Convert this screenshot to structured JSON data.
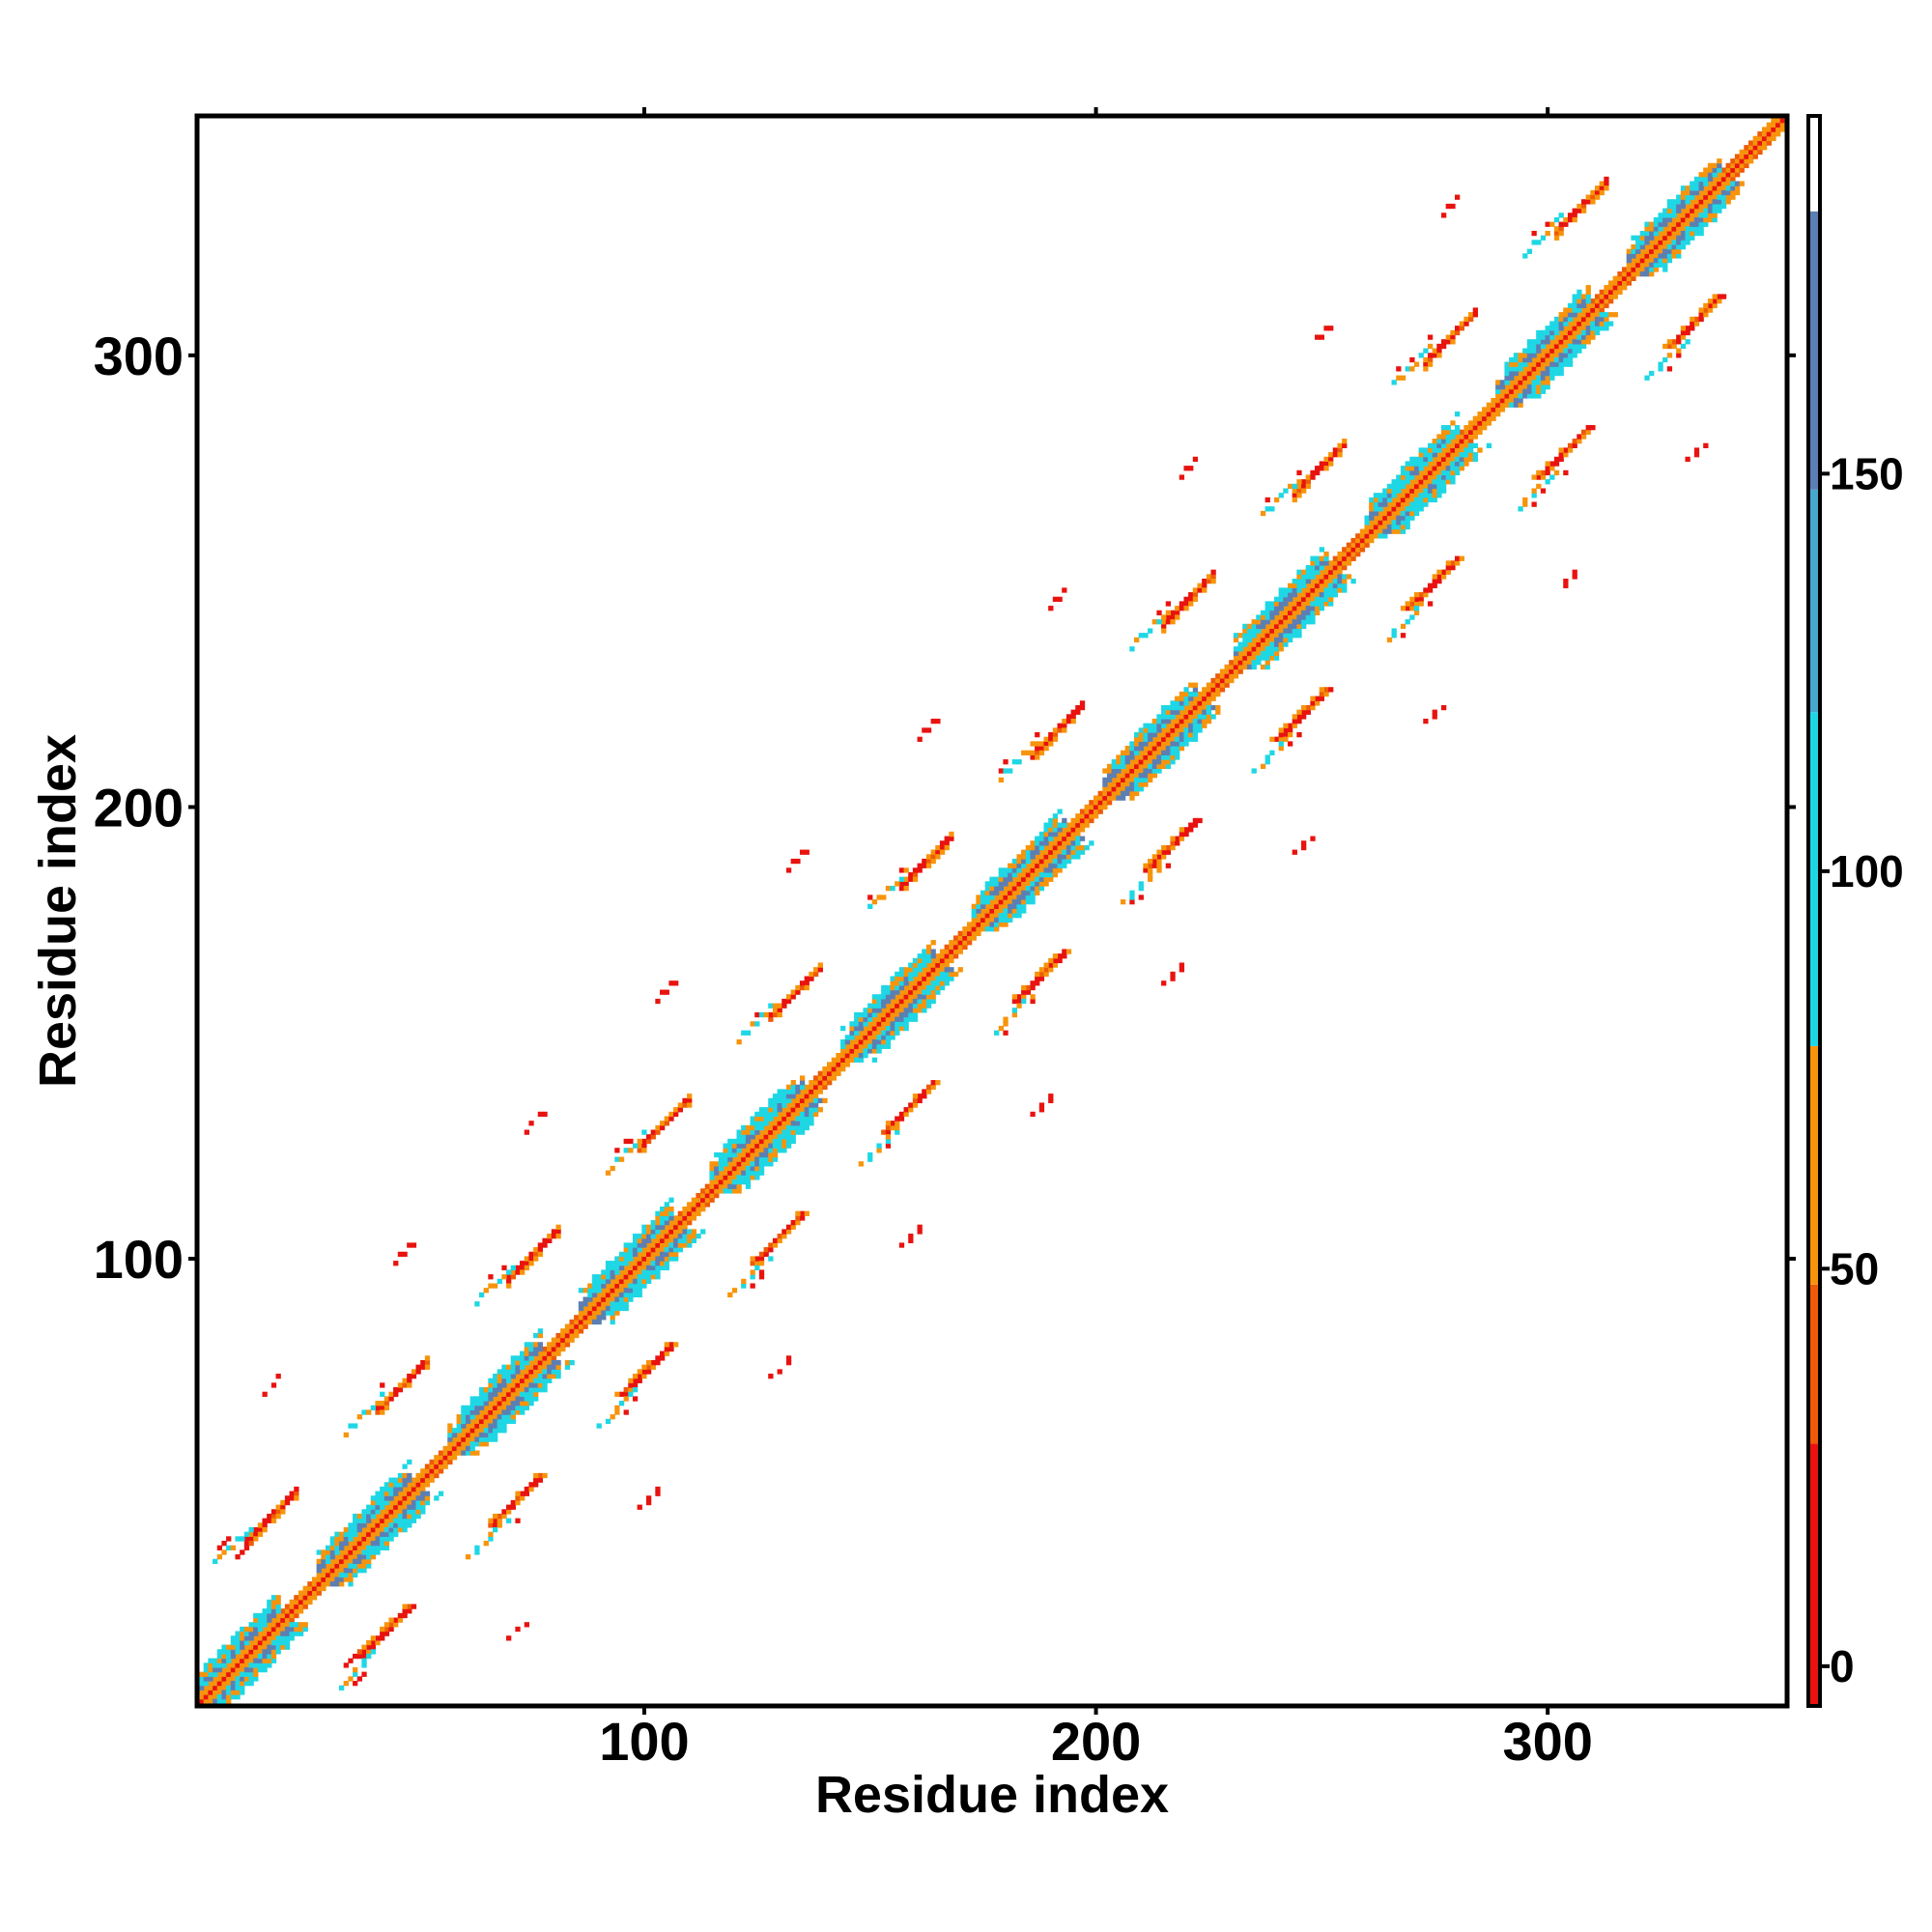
{
  "chart_data": {
    "type": "heatmap",
    "title": "",
    "xlabel": "Residue index",
    "ylabel": "Residue index",
    "xlim": [
      1,
      353
    ],
    "ylim": [
      1,
      353
    ],
    "xticks": [
      100,
      200,
      300
    ],
    "yticks": [
      100,
      200,
      300
    ],
    "colorbar": {
      "ticks": [
        0,
        50,
        100,
        150
      ],
      "range": [
        -5,
        195
      ],
      "bands": [
        {
          "from": -5,
          "to": 28,
          "color": "#e8130f"
        },
        {
          "from": 28,
          "to": 48,
          "color": "#ee5a07"
        },
        {
          "from": 48,
          "to": 78,
          "color": "#f7940c"
        },
        {
          "from": 78,
          "to": 120,
          "color": "#1fd7e4"
        },
        {
          "from": 120,
          "to": 148,
          "color": "#45a8cc"
        },
        {
          "from": 148,
          "to": 183,
          "color": "#5c7fb3"
        },
        {
          "from": 183,
          "to": 195,
          "color": "#ffffff"
        }
      ]
    },
    "palette": {
      "red": "#e8130f",
      "orange_red": "#ee5a07",
      "orange": "#f7940c",
      "cyan": "#1fd7e4",
      "blue": "#5c7fb3"
    },
    "structure": {
      "repeat_start": 9,
      "repeat_period": 29,
      "repeat_count": 12,
      "helix_half_length": 10,
      "off_diagonal_offset": 29,
      "far_offset": 58
    }
  }
}
